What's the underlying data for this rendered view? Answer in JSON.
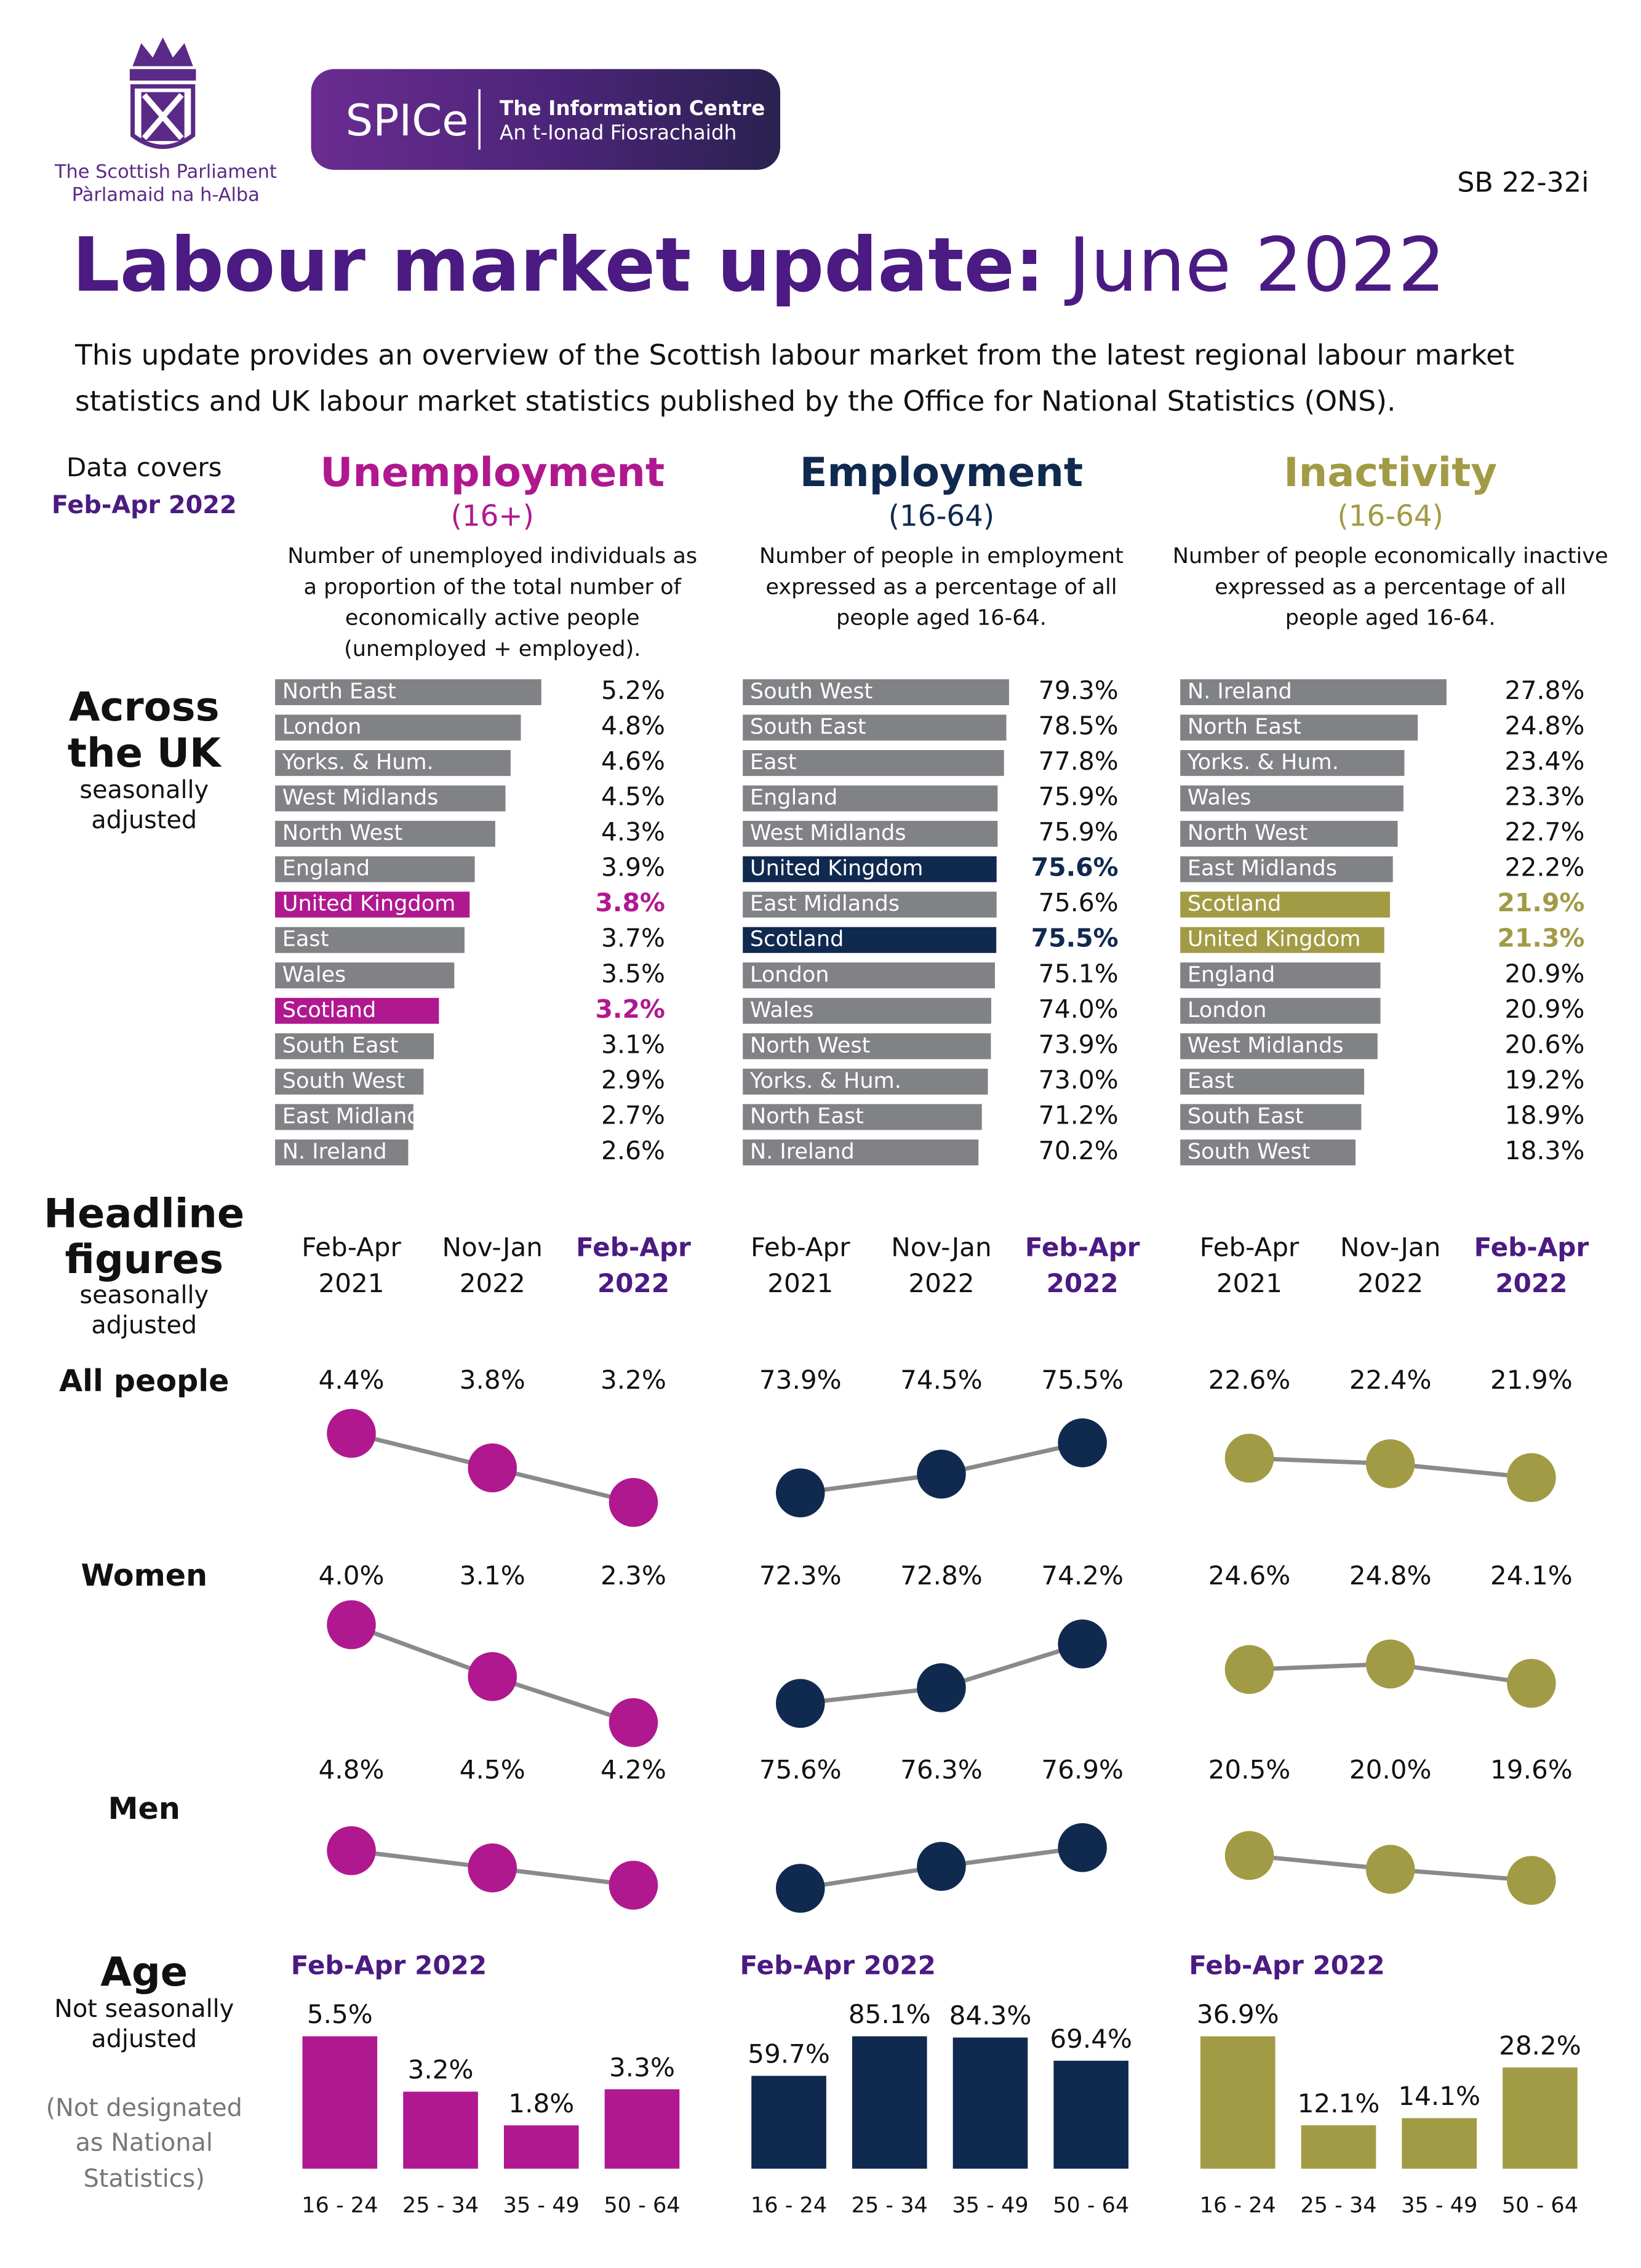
{
  "header": {
    "org_name": "The Scottish Parliament",
    "org_name_gaelic": "Pàrlamaid na h-Alba",
    "brand": "SPICe",
    "brand_name": "The Information Centre",
    "brand_name_gaelic": "An t-Ionad Fiosrachaidh",
    "reference": "SB 22-32i",
    "title": "Labour market update:",
    "title_date": "June 2022",
    "intro": [
      "This update provides an overview of the Scottish labour market from the latest regional labour market",
      "statistics and UK labour market statistics published by the Office for National Statistics (ONS)."
    ]
  },
  "sidebar": {
    "data_covers": "Data covers",
    "period": "Feb-Apr 2022",
    "across": [
      "Across",
      "the UK"
    ],
    "across_note": [
      "seasonally",
      "adjusted"
    ],
    "headline": [
      "Headline",
      "figures"
    ],
    "headline_note": [
      "seasonally",
      "adjusted"
    ],
    "groups": [
      "All people",
      "Women",
      "Men"
    ],
    "age": "Age",
    "age_note": [
      "Not seasonally",
      "adjusted"
    ],
    "age_caveat": [
      "(Not designated",
      "as National",
      "Statistics)"
    ]
  },
  "periods": [
    [
      "Feb-Apr",
      "2021"
    ],
    [
      "Nov-Jan",
      "2022"
    ],
    [
      "Feb-Apr",
      "2022"
    ]
  ],
  "chart_data": [
    {
      "type": "hbar",
      "title": "Unemployment",
      "subtitle": "(16+)",
      "description": [
        "Number of unemployed individuals as",
        "a proportion of the total number of",
        "economically active people",
        "(unemployed + employed)."
      ],
      "color": "#b0188f",
      "bar_color": "#808285",
      "highlight": [
        6,
        9
      ],
      "categories": [
        "North East",
        "London",
        "Yorks. & Hum.",
        "West Midlands",
        "North West",
        "England",
        "United Kingdom",
        "East",
        "Wales",
        "Scotland",
        "South East",
        "South West",
        "East Midland",
        "N. Ireland"
      ],
      "values": [
        5.2,
        4.8,
        4.6,
        4.5,
        4.3,
        3.9,
        3.8,
        3.7,
        3.5,
        3.2,
        3.1,
        2.9,
        2.7,
        2.6
      ],
      "value_labels": [
        "5.2%",
        "4.8%",
        "4.6%",
        "4.5%",
        "4.3%",
        "3.9%",
        "3.8%",
        "3.7%",
        "3.5%",
        "3.2%",
        "3.1%",
        "2.9%",
        "2.7%",
        "2.6%"
      ]
    },
    {
      "type": "hbar",
      "title": "Employment",
      "subtitle": "(16-64)",
      "description": [
        "Number of people in employment",
        "expressed as a percentage of all",
        "people aged 16-64."
      ],
      "color": "#10294f",
      "bar_color": "#808285",
      "highlight": [
        5,
        7
      ],
      "categories": [
        "South West",
        "South East",
        "East",
        "England",
        "West Midlands",
        "United Kingdom",
        "East Midlands",
        "Scotland",
        "London",
        "Wales",
        "North West",
        "Yorks. & Hum.",
        "North East",
        "N. Ireland"
      ],
      "values": [
        79.3,
        78.5,
        77.8,
        75.9,
        75.9,
        75.6,
        75.6,
        75.5,
        75.1,
        74.0,
        73.9,
        73.0,
        71.2,
        70.2
      ],
      "value_labels": [
        "79.3%",
        "78.5%",
        "77.8%",
        "75.9%",
        "75.9%",
        "75.6%",
        "75.6%",
        "75.5%",
        "75.1%",
        "74.0%",
        "73.9%",
        "73.0%",
        "71.2%",
        "70.2%"
      ]
    },
    {
      "type": "hbar",
      "title": "Inactivity",
      "subtitle": "(16-64)",
      "description": [
        "Number of people economically inactive",
        "expressed as a percentage of all",
        "people aged 16-64."
      ],
      "color": "#a29b45",
      "bar_color": "#808285",
      "highlight": [
        6,
        7
      ],
      "categories": [
        "N. Ireland",
        "North East",
        "Yorks. & Hum.",
        "Wales",
        "North West",
        "East Midlands",
        "Scotland",
        "United Kingdom",
        "England",
        "London",
        "West Midlands",
        "East",
        "South East",
        "South West"
      ],
      "values": [
        27.8,
        24.8,
        23.4,
        23.3,
        22.7,
        22.2,
        21.9,
        21.3,
        20.9,
        20.9,
        20.6,
        19.2,
        18.9,
        18.3
      ],
      "value_labels": [
        "27.8%",
        "24.8%",
        "23.4%",
        "23.3%",
        "22.7%",
        "22.2%",
        "21.9%",
        "21.3%",
        "20.9%",
        "20.9%",
        "20.6%",
        "19.2%",
        "18.9%",
        "18.3%"
      ]
    },
    {
      "type": "dotline",
      "color": "#b0188f",
      "line_color": "#8a8a8a",
      "series": [
        {
          "values": [
            4.4,
            3.8,
            3.2
          ],
          "value_labels": [
            "4.4%",
            "3.8%",
            "3.2%"
          ]
        },
        {
          "values": [
            4.0,
            3.1,
            2.3
          ],
          "value_labels": [
            "4.0%",
            "3.1%",
            "2.3%"
          ]
        },
        {
          "values": [
            4.8,
            4.5,
            4.2
          ],
          "value_labels": [
            "4.8%",
            "4.5%",
            "4.2%"
          ]
        }
      ]
    },
    {
      "type": "dotline",
      "color": "#10294f",
      "line_color": "#8a8a8a",
      "series": [
        {
          "values": [
            73.9,
            74.5,
            75.5
          ],
          "value_labels": [
            "73.9%",
            "74.5%",
            "75.5%"
          ]
        },
        {
          "values": [
            72.3,
            72.8,
            74.2
          ],
          "value_labels": [
            "72.3%",
            "72.8%",
            "74.2%"
          ]
        },
        {
          "values": [
            75.6,
            76.3,
            76.9
          ],
          "value_labels": [
            "75.6%",
            "76.3%",
            "76.9%"
          ]
        }
      ]
    },
    {
      "type": "dotline",
      "color": "#a29b45",
      "line_color": "#8a8a8a",
      "series": [
        {
          "values": [
            22.6,
            22.4,
            21.9
          ],
          "value_labels": [
            "22.6%",
            "22.4%",
            "21.9%"
          ]
        },
        {
          "values": [
            24.6,
            24.8,
            24.1
          ],
          "value_labels": [
            "24.6%",
            "24.8%",
            "24.1%"
          ]
        },
        {
          "values": [
            20.5,
            20.0,
            19.6
          ],
          "value_labels": [
            "20.5%",
            "20.0%",
            "19.6%"
          ]
        }
      ]
    },
    {
      "type": "bar",
      "title": "Feb-Apr 2022",
      "color": "#b0188f",
      "categories": [
        "16 - 24",
        "25 - 34",
        "35 - 49",
        "50 - 64"
      ],
      "values": [
        5.5,
        3.2,
        1.8,
        3.3
      ],
      "value_labels": [
        "5.5%",
        "3.2%",
        "1.8%",
        "3.3%"
      ]
    },
    {
      "type": "bar",
      "title": "Feb-Apr 2022",
      "color": "#10294f",
      "categories": [
        "16 - 24",
        "25 - 34",
        "35 - 49",
        "50 - 64"
      ],
      "values": [
        59.7,
        85.1,
        84.3,
        69.4
      ],
      "value_labels": [
        "59.7%",
        "85.1%",
        "84.3%",
        "69.4%"
      ]
    },
    {
      "type": "bar",
      "title": "Feb-Apr 2022",
      "color": "#a29b45",
      "categories": [
        "16 - 24",
        "25 - 34",
        "35 - 49",
        "50 - 64"
      ],
      "values": [
        36.9,
        12.1,
        14.1,
        28.2
      ],
      "value_labels": [
        "36.9%",
        "12.1%",
        "14.1%",
        "28.2%"
      ]
    }
  ]
}
